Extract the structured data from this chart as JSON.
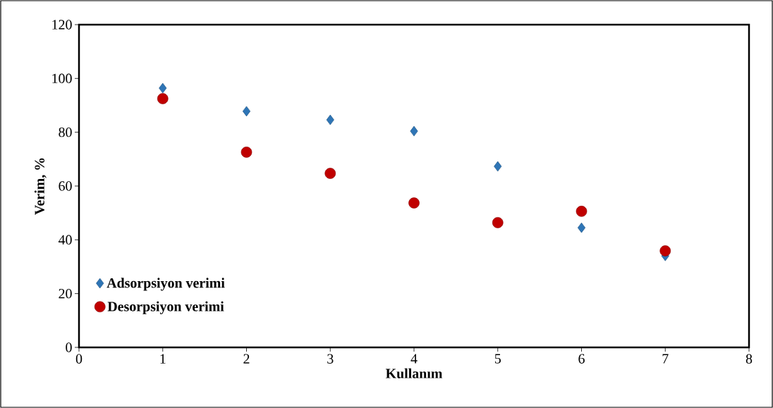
{
  "chart_data": {
    "type": "scatter",
    "xlabel": "Kullanım",
    "ylabel": "Verim, %",
    "x": [
      1,
      2,
      3,
      4,
      5,
      6,
      7
    ],
    "series": [
      {
        "name": "Adsorpsiyon verimi",
        "color": "#2e75b6",
        "marker": "diamond",
        "values": [
          96.4,
          87.8,
          84.6,
          80.4,
          67.3,
          44.5,
          34
        ]
      },
      {
        "name": "Desorpsiyon verimi",
        "color": "#c00000",
        "marker": "circle",
        "values": [
          92.5,
          72.6,
          64.7,
          53.7,
          46.4,
          50.6,
          35.9
        ]
      }
    ],
    "xlim": [
      0,
      8
    ],
    "ylim": [
      0,
      120
    ],
    "xticks": [
      0,
      1,
      2,
      3,
      4,
      5,
      6,
      7,
      8
    ],
    "yticks": [
      0,
      20,
      40,
      60,
      80,
      100,
      120
    ],
    "grid": false,
    "legend": "bottom left"
  }
}
